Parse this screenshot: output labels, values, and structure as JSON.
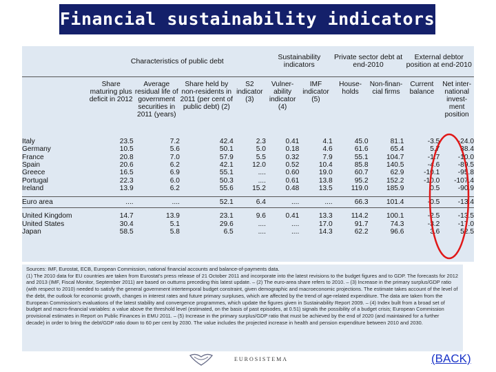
{
  "title": "Financial sustainability indicators",
  "table": {
    "group_headers": {
      "public_debt": "Characteristics of public debt",
      "sustainability": "Sustainability indicators",
      "private_debt": "Private sector debt at end-2010",
      "external": "External debtor position at end-2010"
    },
    "columns": [
      "Share maturing plus deficit in 2012",
      "Average residual life of government securities in 2011 (years)",
      "Share held by non-residents in 2011 (per cent of public debt) (2)",
      "S2 indicator (3)",
      "Vulner-ability indicator (4)",
      "IMF indicator (5)",
      "House-holds",
      "Non-finan-cial firms",
      "Current balance",
      "Net inter-national invest-ment position"
    ],
    "group1": [
      {
        "country": "Italy",
        "values": [
          "23.5",
          "7.2",
          "42.4",
          "2.3",
          "0.41",
          "4.1",
          "45.0",
          "81.1",
          "-3.5",
          "-24.0"
        ]
      },
      {
        "country": "Germany",
        "values": [
          "10.5",
          "5.6",
          "50.1",
          "5.0",
          "0.18",
          "4.6",
          "61.6",
          "65.4",
          "5.7",
          "38.4"
        ]
      },
      {
        "country": "France",
        "values": [
          "20.8",
          "7.0",
          "57.9",
          "5.5",
          "0.32",
          "7.9",
          "55.1",
          "104.7",
          "-1.7",
          "-10.0"
        ]
      },
      {
        "country": "Spain",
        "values": [
          "20.6",
          "6.2",
          "42.1",
          "12.0",
          "0.52",
          "10.4",
          "85.8",
          "140.5",
          "-4.6",
          "-89.5"
        ]
      },
      {
        "country": "Greece",
        "values": [
          "16.5",
          "6.9",
          "55.1",
          "....",
          "0.60",
          "19.0",
          "60.7",
          "62.9",
          "-10.1",
          "-95.8"
        ]
      },
      {
        "country": "Portugal",
        "values": [
          "22.3",
          "6.0",
          "50.3",
          "....",
          "0.61",
          "13.8",
          "95.2",
          "152.2",
          "-10.0",
          "-107.4"
        ]
      },
      {
        "country": "Ireland",
        "values": [
          "13.9",
          "6.2",
          "55.6",
          "15.2",
          "0.48",
          "13.5",
          "119.0",
          "185.9",
          "0.5",
          "-90.9"
        ]
      }
    ],
    "euro": {
      "country": "Euro area",
      "values": [
        "....",
        "....",
        "52.1",
        "6.4",
        "....",
        "....",
        "66.3",
        "101.4",
        "-0.5",
        "-13.4"
      ]
    },
    "group2": [
      {
        "country": "United Kingdom",
        "values": [
          "14.7",
          "13.9",
          "23.1",
          "9.6",
          "0.41",
          "13.3",
          "114.2",
          "100.1",
          "-2.5",
          "-13.5"
        ]
      },
      {
        "country": "United States",
        "values": [
          "30.4",
          "5.1",
          "29.6",
          "....",
          "....",
          "17.0",
          "91.7",
          "74.3",
          "-3.2",
          "-17.0"
        ]
      },
      {
        "country": "Japan",
        "values": [
          "58.5",
          "5.8",
          "6.5",
          "....",
          "....",
          "14.3",
          "62.2",
          "96.6",
          "3.6",
          "52.5"
        ]
      }
    ]
  },
  "notes": {
    "sources": "Sources: IMF, Eurostat, ECB, European Commission, national financial accounts and balance-of-payments data.",
    "body": "(1) The 2010 data for EU countries are taken from Eurostat's press release of 21 October 2011 and incorporate into the latest revisions to the budget figures and to GDP. The forecasts for 2012 and 2013 (IMF, Fiscal Monitor, September 2011) are based on outturns preceding this latest update. – (2) The euro-area share refers to 2010. – (3) Increase in the primary surplus/GDP ratio (with respect to 2010) needed to satisfy the general government intertemporal budget constraint, given demographic and macroeconomic projections. The estimate takes account of the level of the debt, the outlook for economic growth, changes in interest rates and future primary surpluses, which are affected by the trend of age-related expenditure. The data are taken from the European Commission's evaluations of the latest stability and convergence programmes, which update the figures given in Sustainability Report 2009. – (4) Index built from a broad set of budget and macro-financial variables: a value above the threshold level (estimated, on the basis of past episodes, at 0.51) signals the possibility of a budget crisis; European Commission provisional estimates in Report on Public Finances in EMU 2011. – (5) Increase in the primary surplus/GDP ratio that must be achieved by the end of 2020 (and maintained for a further decade) in order to bring the debt/GDP ratio down to 60 per cent by 2030. The value includes the projected increase in health and pension expenditure between 2010 and 2030."
  },
  "footer": {
    "logo_text": "EUROSISTEMA",
    "back_link": "(BACK)"
  },
  "colors": {
    "title_bg": "#14206a",
    "panel_bg": "#dfe8f2",
    "highlight": "#e01818",
    "link": "#1a34c8"
  }
}
